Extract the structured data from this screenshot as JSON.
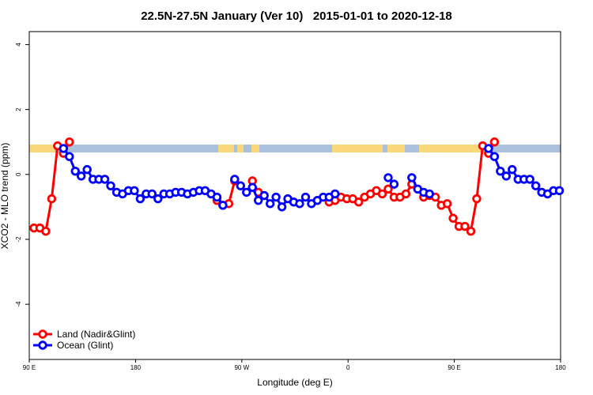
{
  "chart_data": {
    "type": "line",
    "title": "22.5N-27.5N January (Ver 10)   2015-01-01 to 2020-12-18",
    "x_label": "Longitude (deg E)",
    "y_label": "XCO2 - MLO trend (ppm)",
    "xlim": [
      90,
      540
    ],
    "ylim": [
      -5.7,
      4.4
    ],
    "xticks": [
      {
        "value": 90,
        "label": "90 E"
      },
      180,
      {
        "value": 270,
        "label": "90 W"
      },
      {
        "value": 360,
        "label": "0"
      },
      {
        "value": 450,
        "label": "90 E"
      },
      {
        "value": 540,
        "label": "180"
      }
    ],
    "yticks": [
      -4,
      -2,
      0,
      2,
      4
    ],
    "legend": "bottom-left",
    "x": [
      94,
      99,
      104,
      109,
      114,
      119,
      124,
      129,
      134,
      139,
      144,
      149,
      154,
      159,
      164,
      169,
      174,
      179,
      184,
      189,
      194,
      199,
      204,
      209,
      214,
      219,
      224,
      229,
      234,
      239,
      244,
      249,
      254,
      259,
      264,
      269,
      274,
      279,
      284,
      289,
      294,
      299,
      304,
      309,
      314,
      319,
      324,
      329,
      334,
      339,
      344,
      349,
      354,
      359,
      364,
      369,
      374,
      379,
      384,
      389,
      394,
      399,
      404,
      409,
      414,
      419,
      424,
      429,
      434,
      439,
      444,
      449,
      454,
      459,
      464,
      469,
      474,
      479,
      484,
      489,
      494,
      499,
      504,
      509,
      514,
      519,
      524,
      529,
      534,
      539
    ],
    "series": [
      {
        "name": "Land (Nadir&Glint)",
        "color": "#ff0000",
        "values": [
          -1.65,
          -1.65,
          -1.75,
          -0.75,
          0.88,
          0.65,
          1.0,
          null,
          null,
          null,
          null,
          null,
          null,
          null,
          null,
          null,
          null,
          null,
          null,
          null,
          null,
          null,
          null,
          null,
          null,
          null,
          null,
          null,
          null,
          null,
          null,
          -0.8,
          -0.95,
          -0.9,
          -0.2,
          null,
          null,
          -0.2,
          -0.55,
          null,
          null,
          null,
          null,
          null,
          null,
          null,
          null,
          null,
          null,
          null,
          -0.85,
          -0.8,
          -0.7,
          -0.75,
          -0.75,
          -0.85,
          -0.7,
          -0.6,
          -0.5,
          -0.6,
          -0.45,
          -0.7,
          -0.7,
          -0.6,
          -0.3,
          null,
          -0.7,
          -0.65,
          -0.7,
          -0.95,
          -0.9,
          -1.35,
          -1.6,
          -1.6,
          -1.75,
          -0.75,
          0.88,
          0.65,
          1.0,
          null,
          null,
          null,
          null,
          null,
          null,
          null,
          null,
          null,
          null,
          null
        ]
      },
      {
        "name": "Ocean (Glint)",
        "color": "#0000ff",
        "values": [
          null,
          null,
          null,
          null,
          null,
          0.8,
          0.55,
          0.1,
          -0.05,
          0.15,
          -0.15,
          -0.15,
          -0.15,
          -0.35,
          -0.55,
          -0.6,
          -0.5,
          -0.5,
          -0.75,
          -0.6,
          -0.6,
          -0.75,
          -0.6,
          -0.6,
          -0.55,
          -0.55,
          -0.6,
          -0.55,
          -0.5,
          -0.5,
          -0.6,
          -0.7,
          -0.95,
          null,
          -0.15,
          -0.35,
          -0.55,
          -0.4,
          -0.8,
          -0.65,
          -0.9,
          -0.7,
          -1.0,
          -0.75,
          -0.85,
          -0.9,
          -0.7,
          -0.9,
          -0.8,
          -0.7,
          -0.7,
          -0.6,
          null,
          null,
          null,
          null,
          null,
          null,
          null,
          null,
          -0.1,
          -0.3,
          null,
          null,
          -0.1,
          -0.45,
          -0.55,
          -0.6,
          null,
          null,
          null,
          null,
          null,
          null,
          null,
          null,
          null,
          0.8,
          0.55,
          0.1,
          -0.05,
          0.15,
          -0.15,
          -0.15,
          -0.15,
          -0.35,
          -0.55,
          -0.6,
          -0.5,
          -0.5
        ]
      }
    ]
  }
}
